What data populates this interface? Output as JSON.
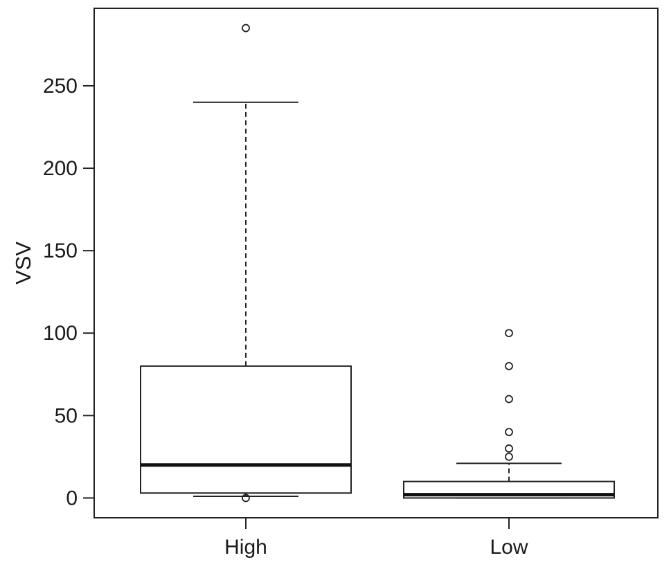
{
  "chart_data": {
    "type": "boxplot",
    "ylabel": "VSV",
    "xlabel": "",
    "ylim": [
      -12,
      297
    ],
    "yticks": [
      0,
      50,
      100,
      150,
      200,
      250
    ],
    "categories": [
      "High",
      "Low"
    ],
    "boxes": [
      {
        "category": "High",
        "whisker_low": 1,
        "q1": 3,
        "median": 20,
        "q3": 80,
        "whisker_high": 240,
        "outliers": [
          0,
          285
        ]
      },
      {
        "category": "Low",
        "whisker_low": 0,
        "q1": 0,
        "median": 2,
        "q3": 10,
        "whisker_high": 21,
        "outliers": [
          25,
          30,
          40,
          60,
          80,
          100
        ]
      }
    ],
    "grid": false
  }
}
